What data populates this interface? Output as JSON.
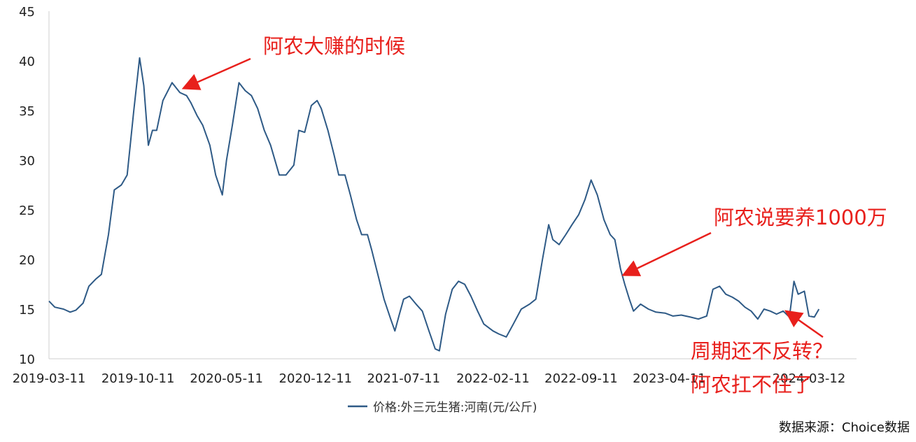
{
  "chart_data": {
    "type": "line",
    "title": "",
    "xlabel": "",
    "ylabel": "",
    "ylim": [
      10,
      45
    ],
    "yticks": [
      10,
      15,
      20,
      25,
      30,
      35,
      40,
      45
    ],
    "xticks": [
      "2019-03-11",
      "2019-10-11",
      "2020-05-11",
      "2020-12-11",
      "2021-07-11",
      "2022-02-11",
      "2022-09-11",
      "2023-04-11",
      "2024-03-12"
    ],
    "grid": false,
    "legend": "bottom-center",
    "series": [
      {
        "name": "价格:外三元生猪:河南(元/公斤)",
        "color": "#2e5a86",
        "x": [
          "2019-03-11",
          "2019-03-25",
          "2019-04-15",
          "2019-05-01",
          "2019-05-15",
          "2019-06-01",
          "2019-06-15",
          "2019-07-01",
          "2019-07-15",
          "2019-08-01",
          "2019-08-15",
          "2019-09-01",
          "2019-09-15",
          "2019-10-01",
          "2019-10-15",
          "2019-10-25",
          "2019-11-05",
          "2019-11-15",
          "2019-11-25",
          "2019-12-10",
          "2020-01-01",
          "2020-01-20",
          "2020-02-05",
          "2020-02-15",
          "2020-03-01",
          "2020-03-15",
          "2020-04-01",
          "2020-04-15",
          "2020-05-01",
          "2020-05-11",
          "2020-05-25",
          "2020-06-10",
          "2020-06-25",
          "2020-07-10",
          "2020-07-25",
          "2020-08-10",
          "2020-08-25",
          "2020-09-15",
          "2020-10-01",
          "2020-10-20",
          "2020-11-01",
          "2020-11-15",
          "2020-12-01",
          "2020-12-15",
          "2020-12-25",
          "2021-01-10",
          "2021-01-25",
          "2021-02-05",
          "2021-02-20",
          "2021-03-05",
          "2021-03-20",
          "2021-04-01",
          "2021-04-15",
          "2021-04-25",
          "2021-05-10",
          "2021-05-25",
          "2021-06-10",
          "2021-06-20",
          "2021-07-01",
          "2021-07-11",
          "2021-07-25",
          "2021-08-10",
          "2021-08-25",
          "2021-09-10",
          "2021-09-25",
          "2021-10-05",
          "2021-10-20",
          "2021-11-05",
          "2021-11-20",
          "2021-12-05",
          "2021-12-20",
          "2022-01-05",
          "2022-01-20",
          "2022-02-11",
          "2022-02-25",
          "2022-03-15",
          "2022-04-01",
          "2022-04-20",
          "2022-05-10",
          "2022-05-25",
          "2022-06-10",
          "2022-06-25",
          "2022-07-05",
          "2022-07-20",
          "2022-08-05",
          "2022-08-20",
          "2022-09-05",
          "2022-09-20",
          "2022-10-05",
          "2022-10-20",
          "2022-11-05",
          "2022-11-20",
          "2022-12-01",
          "2022-12-15",
          "2022-12-25",
          "2023-01-05",
          "2023-01-15",
          "2023-02-01",
          "2023-02-20",
          "2023-03-10",
          "2023-04-01",
          "2023-04-20",
          "2023-05-10",
          "2023-06-01",
          "2023-06-20",
          "2023-07-10",
          "2023-07-25",
          "2023-08-10",
          "2023-08-25",
          "2023-09-10",
          "2023-09-25",
          "2023-10-10",
          "2023-10-25",
          "2023-11-10",
          "2023-11-25",
          "2023-12-10",
          "2023-12-25",
          "2024-01-10",
          "2024-01-25",
          "2024-02-05",
          "2024-02-15",
          "2024-03-01",
          "2024-03-12",
          "2024-03-25",
          "2024-04-05"
        ],
        "values": [
          15.8,
          15.2,
          15.0,
          14.7,
          14.9,
          15.6,
          17.3,
          18.0,
          18.5,
          22.5,
          27.0,
          27.5,
          28.5,
          35.0,
          40.3,
          37.5,
          31.5,
          33.0,
          33.0,
          36.0,
          37.8,
          36.8,
          36.5,
          35.8,
          34.5,
          33.5,
          31.5,
          28.5,
          26.5,
          30.0,
          33.5,
          37.8,
          37.0,
          36.5,
          35.2,
          33.0,
          31.5,
          28.5,
          28.5,
          29.5,
          33.0,
          32.8,
          35.5,
          36.0,
          35.2,
          33.0,
          30.5,
          28.5,
          28.5,
          26.5,
          24.0,
          22.5,
          22.5,
          21.0,
          18.5,
          16.0,
          14.0,
          12.8,
          14.5,
          16.0,
          16.3,
          15.5,
          14.8,
          12.8,
          11.0,
          10.8,
          14.5,
          17.0,
          17.8,
          17.5,
          16.3,
          14.8,
          13.5,
          12.8,
          12.5,
          12.2,
          13.5,
          15.0,
          15.5,
          16.0,
          20.0,
          23.5,
          22.0,
          21.5,
          22.5,
          23.5,
          24.5,
          26.0,
          28.0,
          26.5,
          24.0,
          22.5,
          22.0,
          19.0,
          17.5,
          16.0,
          14.8,
          15.5,
          15.0,
          14.7,
          14.6,
          14.3,
          14.4,
          14.2,
          14.0,
          14.3,
          17.0,
          17.3,
          16.5,
          16.2,
          15.8,
          15.2,
          14.8,
          14.0,
          15.0,
          14.8,
          14.5,
          14.8,
          14.2,
          17.8,
          16.5,
          16.8,
          14.3,
          14.2,
          15.0
        ]
      }
    ],
    "annotations": [
      {
        "text": "阿农大赚的时候",
        "points_to": {
          "x": "2020-02-01",
          "y": 37.3
        }
      },
      {
        "text": "阿农说要养1000万",
        "points_to": {
          "x": "2022-12-25",
          "y": 18.5
        }
      },
      {
        "text": "周期还不反转？",
        "points_to": {
          "x": "2024-01-20",
          "y": 14.7
        }
      },
      {
        "text": "阿农扛不住了",
        "points_to": null
      }
    ],
    "source_note": "数据来源：Choice数据"
  }
}
